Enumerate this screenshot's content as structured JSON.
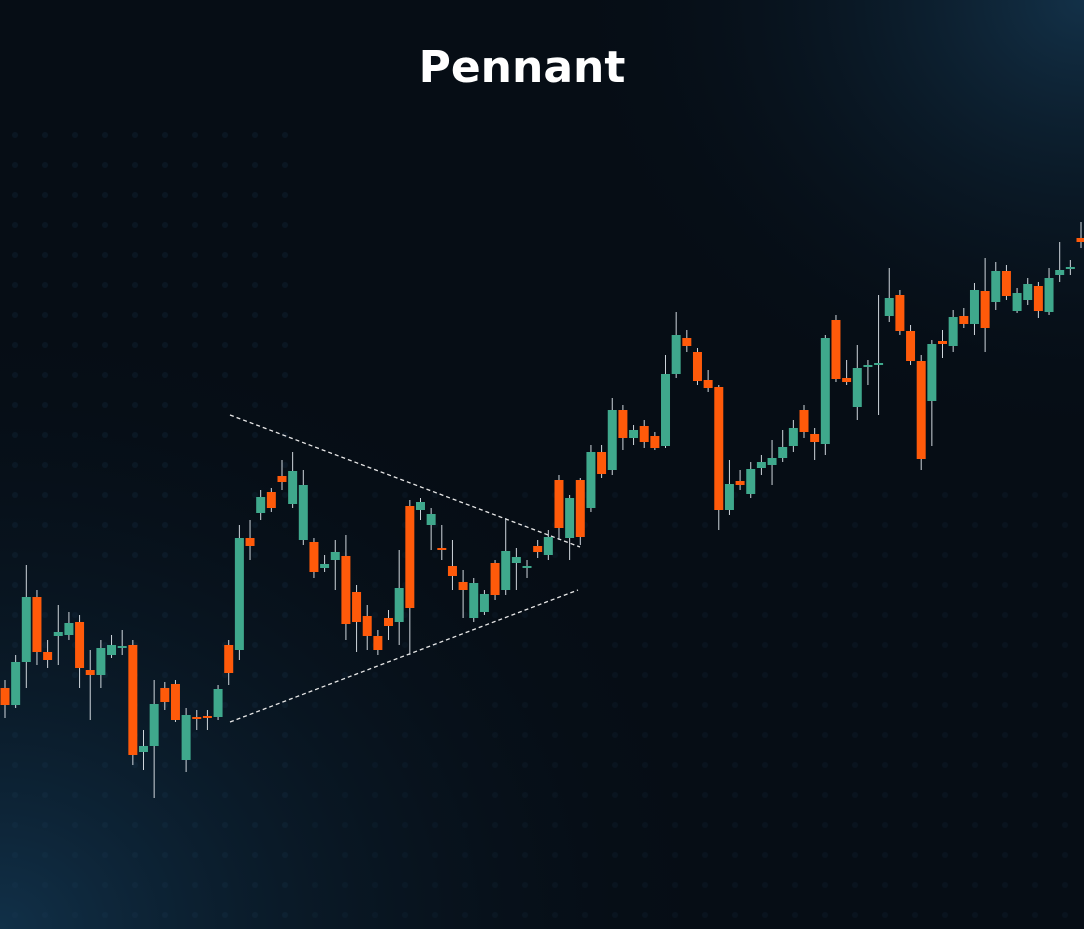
{
  "chart_data": {
    "type": "candlestick",
    "title": "Pennant",
    "ylim": [
      0,
      929
    ],
    "up_color": "#3fa88c",
    "down_color": "#ff5a0a",
    "open": [
      241,
      224,
      267,
      332,
      277,
      293,
      294,
      307,
      259,
      254,
      274,
      281,
      284,
      177,
      183,
      241,
      245,
      169,
      212,
      213,
      212,
      284,
      279,
      391,
      416,
      437,
      453,
      425,
      389,
      387,
      361,
      369,
      373,
      337,
      313,
      293,
      311,
      307,
      423,
      419,
      404,
      381,
      363,
      347,
      311,
      317,
      366,
      339,
      366,
      361,
      383,
      374,
      449,
      391,
      449,
      421,
      477,
      459,
      519,
      491,
      503,
      493,
      483,
      555,
      591,
      577,
      549,
      542,
      419,
      448,
      435,
      461,
      464,
      471,
      483,
      519,
      495,
      485,
      609,
      551,
      522,
      562,
      565,
      613,
      634,
      598,
      568,
      528,
      588,
      583,
      613,
      605,
      638,
      627,
      658,
      618,
      629,
      643,
      617,
      654,
      660,
      691
    ],
    "high": [
      249,
      274,
      364,
      339,
      289,
      324,
      317,
      314,
      279,
      289,
      294,
      299,
      289,
      199,
      249,
      247,
      249,
      221,
      219,
      219,
      244,
      289,
      404,
      409,
      439,
      441,
      469,
      477,
      459,
      391,
      374,
      389,
      394,
      344,
      324,
      299,
      319,
      379,
      429,
      431,
      421,
      404,
      389,
      359,
      351,
      339,
      369,
      411,
      381,
      369,
      389,
      399,
      454,
      434,
      451,
      484,
      484,
      531,
      524,
      504,
      509,
      497,
      574,
      617,
      599,
      581,
      559,
      544,
      469,
      459,
      467,
      474,
      489,
      499,
      509,
      524,
      501,
      594,
      614,
      569,
      584,
      569,
      634,
      661,
      639,
      604,
      574,
      589,
      599,
      619,
      621,
      646,
      671,
      667,
      664,
      641,
      651,
      647,
      661,
      687,
      669,
      707
    ],
    "low": [
      211,
      221,
      241,
      264,
      261,
      264,
      289,
      241,
      209,
      241,
      271,
      274,
      164,
      159,
      131,
      219,
      207,
      157,
      199,
      199,
      209,
      244,
      269,
      369,
      409,
      417,
      439,
      421,
      384,
      351,
      357,
      339,
      289,
      277,
      279,
      274,
      289,
      284,
      274,
      409,
      379,
      369,
      339,
      311,
      307,
      314,
      329,
      334,
      339,
      351,
      371,
      369,
      389,
      369,
      384,
      417,
      451,
      454,
      479,
      484,
      481,
      479,
      481,
      551,
      577,
      544,
      537,
      399,
      414,
      439,
      431,
      454,
      444,
      467,
      477,
      491,
      469,
      474,
      547,
      544,
      509,
      544,
      514,
      607,
      594,
      564,
      459,
      483,
      571,
      577,
      601,
      594,
      577,
      619,
      629,
      616,
      624,
      611,
      614,
      647,
      654,
      681
    ],
    "close": [
      224,
      267,
      332,
      277,
      269,
      297,
      306,
      261,
      254,
      281,
      284,
      283,
      174,
      183,
      225,
      227,
      209,
      214,
      210,
      211,
      240,
      256,
      391,
      383,
      432,
      421,
      447,
      458,
      444,
      357,
      365,
      377,
      305,
      307,
      293,
      279,
      303,
      341,
      321,
      427,
      415,
      379,
      353,
      339,
      346,
      335,
      334,
      378,
      372,
      363,
      377,
      392,
      401,
      431,
      392,
      477,
      455,
      519,
      491,
      499,
      487,
      481,
      555,
      594,
      583,
      548,
      541,
      419,
      445,
      444,
      460,
      467,
      471,
      482,
      501,
      497,
      487,
      591,
      550,
      547,
      561,
      564,
      566,
      631,
      598,
      568,
      470,
      585,
      585,
      612,
      605,
      639,
      601,
      658,
      633,
      636,
      645,
      618,
      651,
      659,
      662,
      687
    ]
  }
}
